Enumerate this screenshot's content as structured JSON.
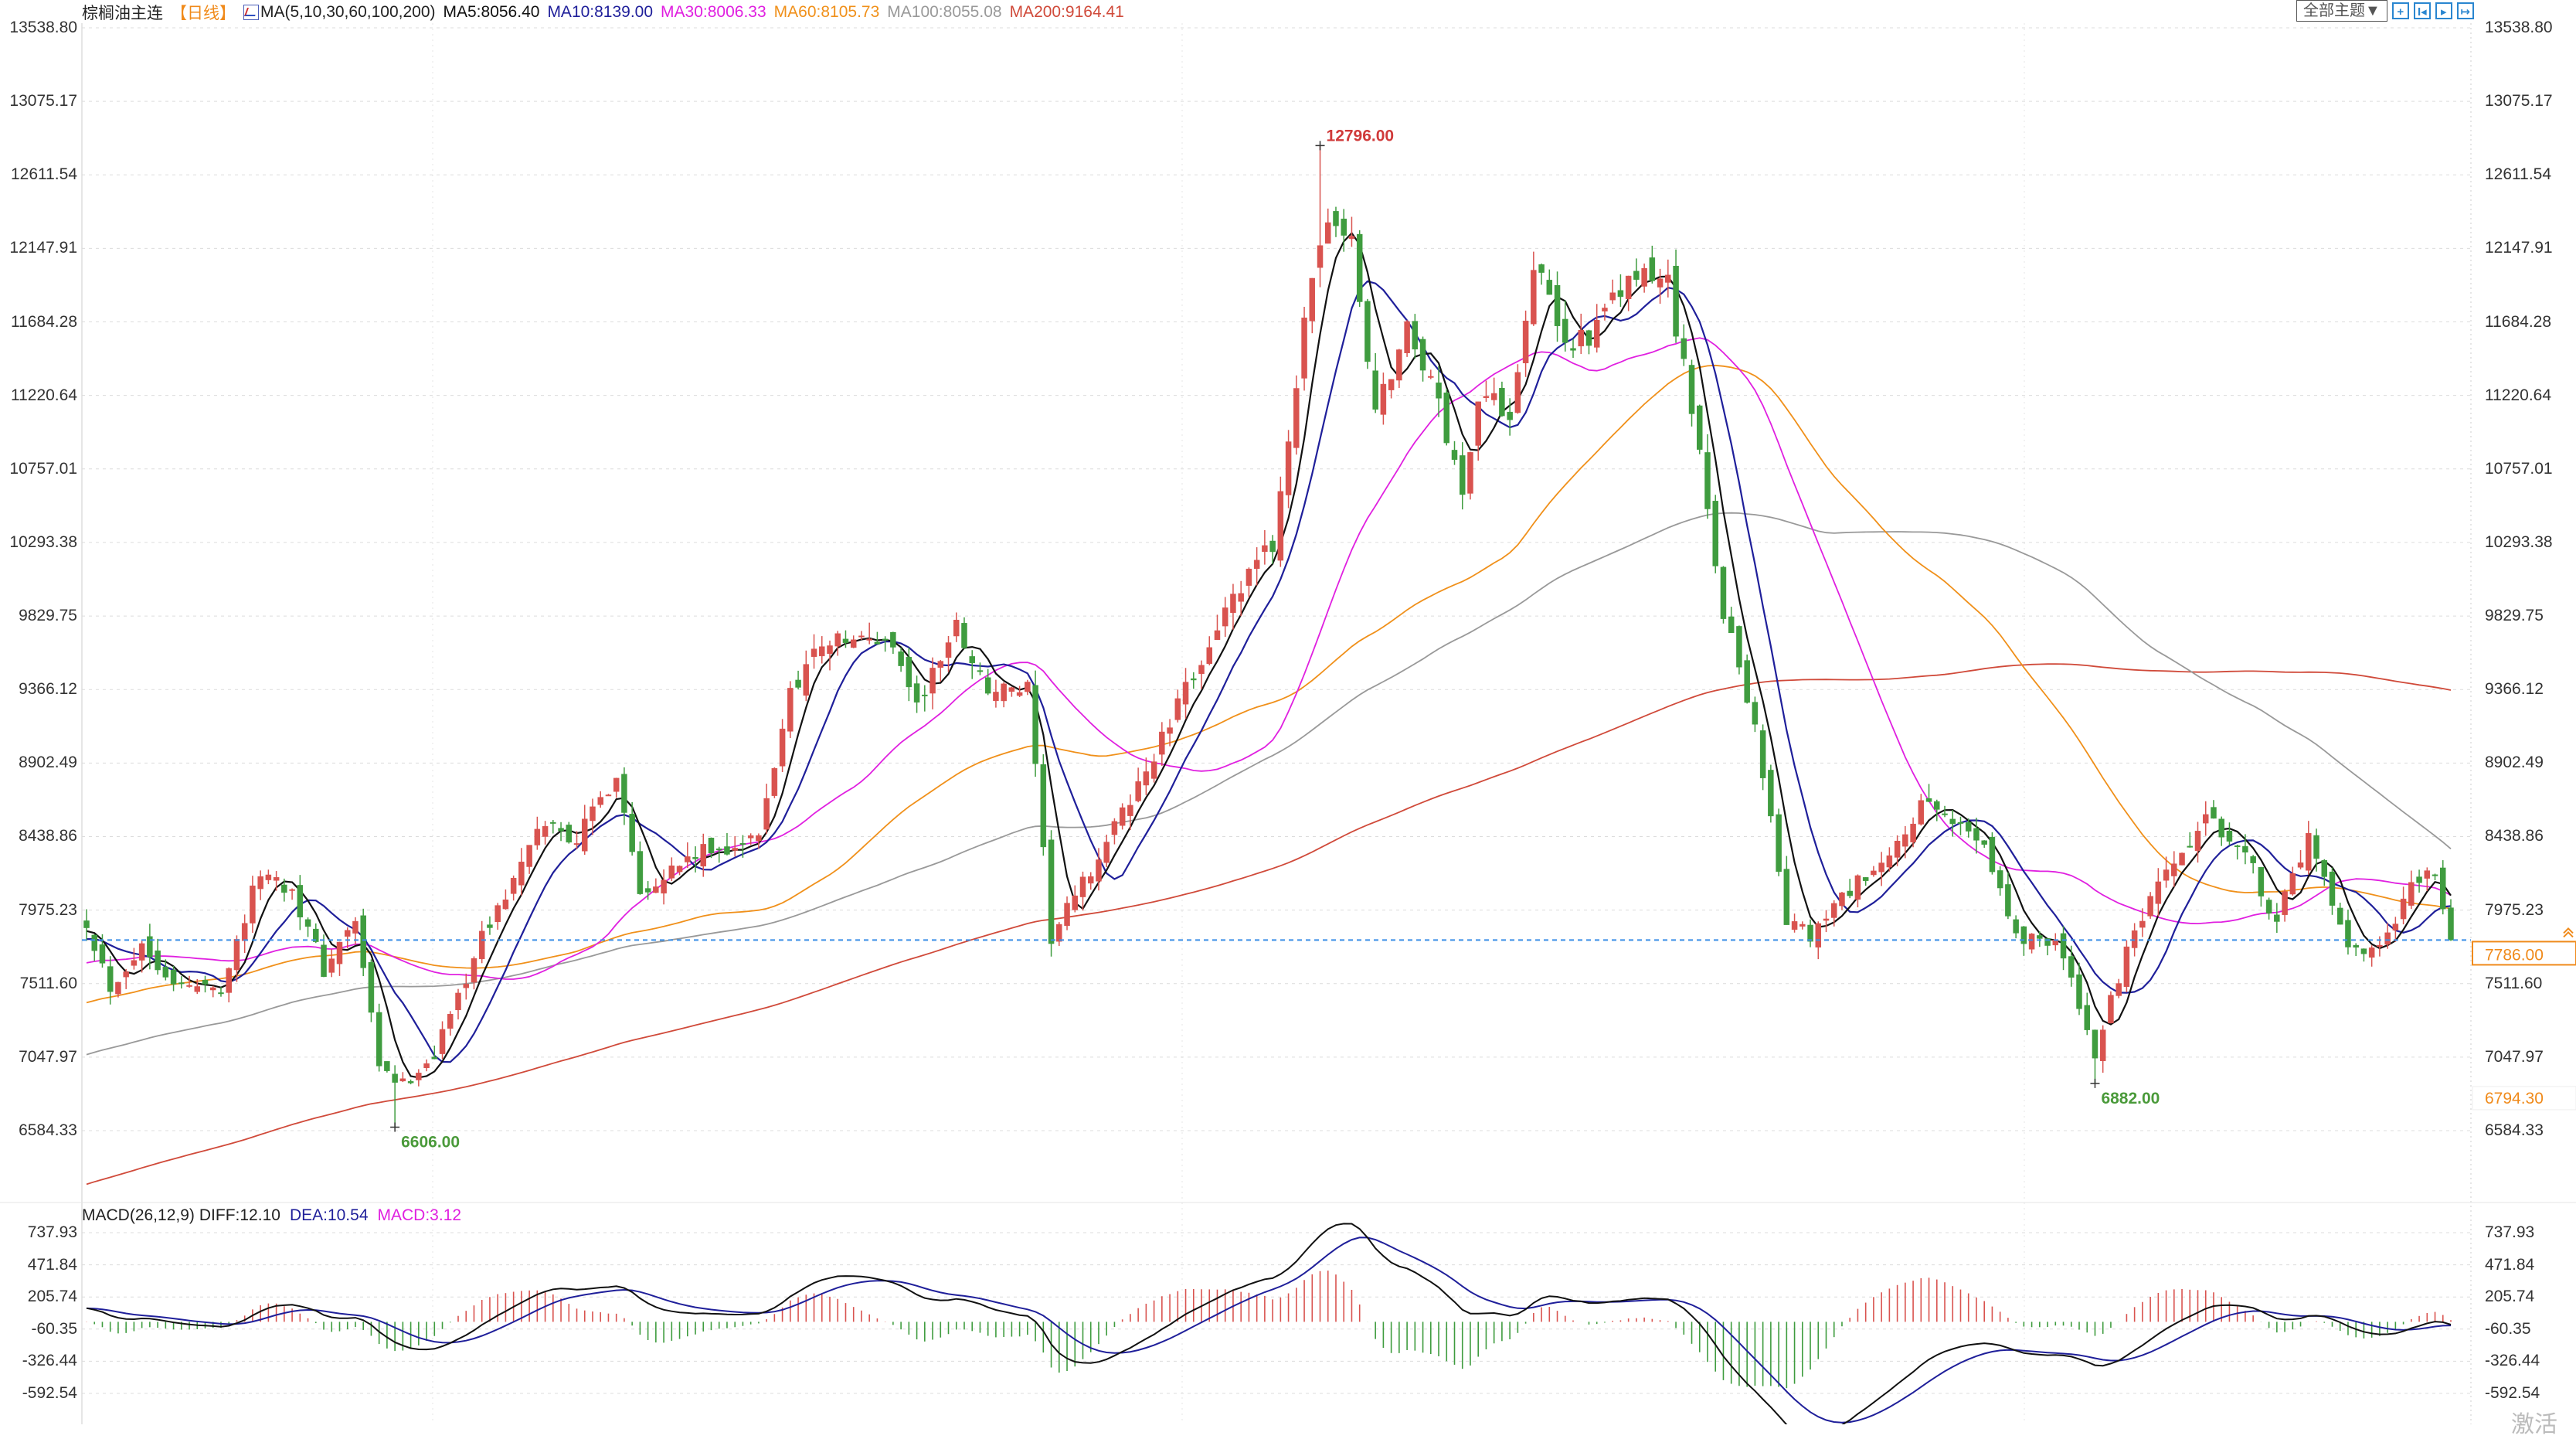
{
  "header": {
    "title": "棕榈油主连",
    "period": "【日线】",
    "ma_params": "MA(5,10,30,60,100,200)",
    "ma5": "MA5:8056.40",
    "ma10": "MA10:8139.00",
    "ma30": "MA30:8006.33",
    "ma60": "MA60:8105.73",
    "ma100": "MA100:8055.08",
    "ma200": "MA200:9164.41"
  },
  "toolbar": {
    "theme_label": "全部主题▼",
    "icons": [
      "crosshair-icon",
      "go-start-icon",
      "play-icon",
      "go-end-icon"
    ]
  },
  "macd_header": {
    "params": "MACD(26,12,9)",
    "diff": "DIFF:12.10",
    "dea": "DEA:10.54",
    "macd": "MACD:3.12"
  },
  "watermark": "激活",
  "colors": {
    "up": "#d9534f",
    "down": "#3f9c3f",
    "ma5": "#111111",
    "ma10": "#1f1f9a",
    "ma30": "#e020e0",
    "ma60": "#f0901a",
    "ma100": "#999999",
    "ma200": "#d04a3a",
    "last_price_line": "#3a8ee6",
    "accent_orange": "#f08a1a"
  },
  "chart_data": {
    "type": "candlestick",
    "title": "棕榈油主连 日线",
    "bars": 300,
    "price_axis": {
      "ticks": [
        "13538.80",
        "13075.17",
        "12611.54",
        "12147.91",
        "11684.28",
        "11220.64",
        "10757.01",
        "10293.38",
        "9829.75",
        "9366.12",
        "8902.49",
        "8438.86",
        "7975.23",
        "7511.60",
        "7047.97",
        "6584.33"
      ],
      "range": [
        6584.33,
        13538.8
      ]
    },
    "close_keypoints": [
      [
        0,
        7908
      ],
      [
        3,
        7493
      ],
      [
        7,
        7750
      ],
      [
        12,
        7490
      ],
      [
        17,
        7490
      ],
      [
        22,
        8220
      ],
      [
        26,
        8110
      ],
      [
        30,
        7595
      ],
      [
        34,
        7908
      ],
      [
        37,
        6975
      ],
      [
        40,
        6870
      ],
      [
        44,
        7075
      ],
      [
        50,
        7800
      ],
      [
        58,
        8530
      ],
      [
        62,
        8425
      ],
      [
        67,
        8840
      ],
      [
        70,
        8110
      ],
      [
        77,
        8320
      ],
      [
        85,
        8425
      ],
      [
        89,
        9360
      ],
      [
        93,
        9670
      ],
      [
        102,
        9670
      ],
      [
        105,
        9255
      ],
      [
        110,
        9770
      ],
      [
        114,
        9360
      ],
      [
        119,
        9360
      ],
      [
        122,
        7800
      ],
      [
        127,
        8220
      ],
      [
        135,
        8945
      ],
      [
        143,
        9770
      ],
      [
        150,
        10290
      ],
      [
        154,
        11640
      ],
      [
        157,
        12370
      ],
      [
        160,
        12160
      ],
      [
        163,
        11120
      ],
      [
        167,
        11640
      ],
      [
        170,
        11330
      ],
      [
        174,
        10600
      ],
      [
        176,
        11230
      ],
      [
        180,
        11120
      ],
      [
        183,
        12060
      ],
      [
        187,
        11540
      ],
      [
        191,
        11640
      ],
      [
        195,
        11950
      ],
      [
        200,
        11950
      ],
      [
        203,
        11120
      ],
      [
        207,
        9870
      ],
      [
        211,
        9150
      ],
      [
        215,
        7908
      ],
      [
        218,
        7800
      ],
      [
        223,
        8110
      ],
      [
        227,
        8220
      ],
      [
        232,
        8630
      ],
      [
        236,
        8530
      ],
      [
        240,
        8425
      ],
      [
        244,
        7800
      ],
      [
        249,
        7800
      ],
      [
        254,
        7075
      ],
      [
        258,
        7700
      ],
      [
        262,
        8110
      ],
      [
        268,
        8530
      ],
      [
        272,
        8425
      ],
      [
        277,
        7908
      ],
      [
        281,
        8425
      ],
      [
        286,
        7700
      ],
      [
        290,
        7700
      ],
      [
        294,
        8110
      ],
      [
        297,
        8220
      ],
      [
        299,
        7786
      ]
    ],
    "annotations": {
      "high": {
        "bar": 156,
        "value": "12796.00"
      },
      "low1": {
        "bar": 39,
        "value": "6606.00"
      },
      "low2": {
        "bar": 254,
        "value": "6882.00"
      }
    },
    "last_price": "7786.00",
    "marker_price": "6794.30",
    "ma_periods": [
      5,
      10,
      30,
      60,
      100,
      200
    ],
    "macd_axis": {
      "ticks": [
        "737.93",
        "471.84",
        "205.74",
        "-60.35",
        "-326.44",
        "-592.54"
      ],
      "range": [
        -592.54,
        737.93
      ]
    },
    "macd_params": {
      "fast": 12,
      "slow": 26,
      "signal": 9
    }
  }
}
